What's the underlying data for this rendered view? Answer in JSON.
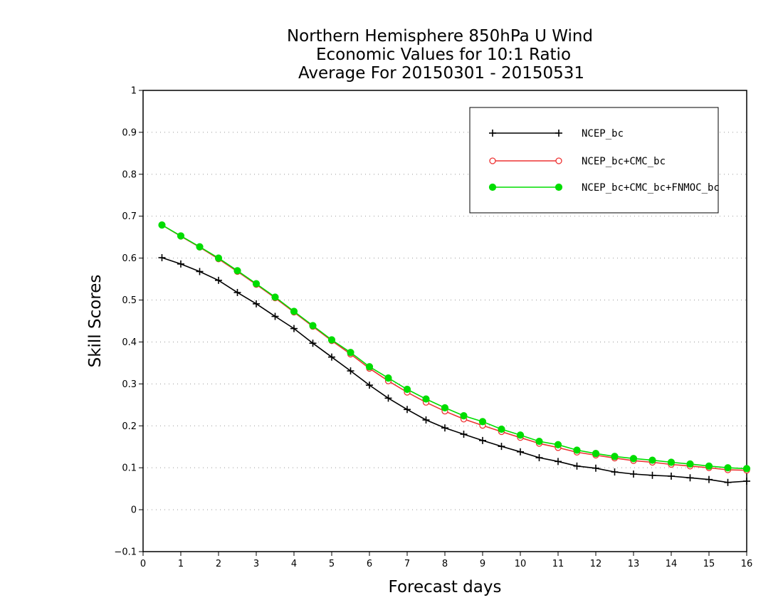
{
  "chart_data": {
    "type": "line",
    "title_lines": [
      "Northern Hemisphere 850hPa U Wind",
      "Economic Values for 10:1 Ratio",
      "Average For 20150301 - 20150531"
    ],
    "xlabel": "Forecast days",
    "ylabel": "Skill Scores",
    "xlim": [
      0,
      16
    ],
    "ylim": [
      -0.1,
      1
    ],
    "xticks": [
      "0",
      "1",
      "2",
      "3",
      "4",
      "5",
      "6",
      "7",
      "8",
      "9",
      "10",
      "11",
      "12",
      "13",
      "14",
      "15",
      "16"
    ],
    "yticks": [
      "−0.1",
      "0",
      "0.1",
      "0.2",
      "0.3",
      "0.4",
      "0.5",
      "0.6",
      "0.7",
      "0.8",
      "0.9",
      "1"
    ],
    "grid": "horizontal dotted",
    "legend_position": "top-right",
    "x": [
      0.5,
      1,
      1.5,
      2,
      2.5,
      3,
      3.5,
      4,
      4.5,
      5,
      5.5,
      6,
      6.5,
      7,
      7.5,
      8,
      8.5,
      9,
      9.5,
      10,
      10.5,
      11,
      11.5,
      12,
      12.5,
      13,
      13.5,
      14,
      14.5,
      15,
      15.5,
      16
    ],
    "series": [
      {
        "name": "NCEP_bc",
        "color": "#000000",
        "marker": "plus",
        "values": [
          0.601,
          0.586,
          0.568,
          0.547,
          0.518,
          0.491,
          0.461,
          0.432,
          0.397,
          0.364,
          0.331,
          0.297,
          0.266,
          0.239,
          0.214,
          0.195,
          0.18,
          0.165,
          0.151,
          0.138,
          0.124,
          0.115,
          0.104,
          0.099,
          0.09,
          0.085,
          0.082,
          0.08,
          0.076,
          0.072,
          0.065,
          0.068
        ]
      },
      {
        "name": "NCEP_bc+CMC_bc",
        "color": "#ee3333",
        "marker": "open-circle",
        "values": [
          0.679,
          0.652,
          0.626,
          0.598,
          0.568,
          0.537,
          0.505,
          0.471,
          0.437,
          0.403,
          0.371,
          0.337,
          0.307,
          0.28,
          0.256,
          0.235,
          0.216,
          0.201,
          0.186,
          0.172,
          0.158,
          0.148,
          0.137,
          0.13,
          0.123,
          0.117,
          0.113,
          0.108,
          0.104,
          0.1,
          0.095,
          0.094
        ]
      },
      {
        "name": "NCEP_bc+CMC_bc+FNMOC_bc",
        "color": "#00dd00",
        "marker": "filled-circle",
        "values": [
          0.679,
          0.653,
          0.627,
          0.6,
          0.57,
          0.539,
          0.507,
          0.473,
          0.439,
          0.405,
          0.375,
          0.341,
          0.314,
          0.287,
          0.264,
          0.243,
          0.224,
          0.21,
          0.192,
          0.178,
          0.163,
          0.155,
          0.142,
          0.134,
          0.127,
          0.122,
          0.118,
          0.113,
          0.109,
          0.104,
          0.1,
          0.098
        ]
      }
    ]
  }
}
